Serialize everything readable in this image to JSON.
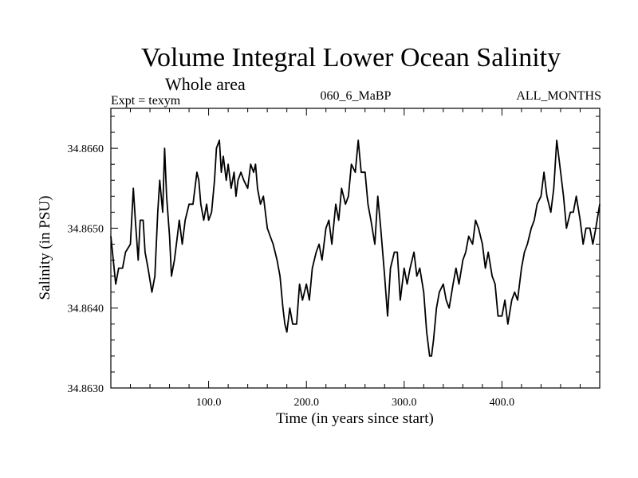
{
  "chart_data": {
    "type": "line",
    "title": "Volume Integral Lower Ocean Salinity",
    "subtitle": "Whole area",
    "header_left": "Expt = texym",
    "header_center": "060_6_MaBP",
    "header_right": "ALL_MONTHS",
    "xlabel": "Time (in years since start)",
    "ylabel": "Salinity (in PSU)",
    "xlim": [
      0,
      500
    ],
    "ylim": [
      34.863,
      34.8665
    ],
    "x_ticks": [
      100,
      200,
      300,
      400
    ],
    "x_tick_labels": [
      "100.0",
      "200.0",
      "300.0",
      "400.0"
    ],
    "y_ticks": [
      34.863,
      34.864,
      34.865,
      34.866
    ],
    "y_tick_labels": [
      "34.8630",
      "34.8640",
      "34.8650",
      "34.8660"
    ],
    "grid": false,
    "line_color": "#000000",
    "series": [
      {
        "x": [
          0,
          5,
          8,
          12,
          15,
          20,
          23,
          25,
          28,
          30,
          33,
          35,
          38,
          42,
          45,
          48,
          50,
          53,
          55,
          57,
          60,
          62,
          65,
          68,
          70,
          73,
          76,
          80,
          84,
          88,
          90,
          92,
          95,
          98,
          100,
          103,
          106,
          108,
          111,
          113,
          115,
          118,
          120,
          123,
          126,
          128,
          130,
          133,
          136,
          140,
          143,
          146,
          148,
          150,
          153,
          156,
          160,
          163,
          166,
          170,
          173,
          176,
          178,
          180,
          183,
          186,
          190,
          193,
          196,
          200,
          203,
          206,
          210,
          213,
          216,
          220,
          223,
          226,
          230,
          233,
          236,
          240,
          243,
          246,
          250,
          253,
          256,
          260,
          263,
          266,
          270,
          273,
          276,
          280,
          283,
          286,
          290,
          293,
          296,
          300,
          303,
          306,
          310,
          313,
          316,
          320,
          323,
          326,
          328,
          330,
          333,
          336,
          340,
          343,
          346,
          350,
          353,
          356,
          360,
          363,
          366,
          370,
          373,
          376,
          380,
          383,
          386,
          390,
          393,
          396,
          400,
          403,
          406,
          410,
          413,
          416,
          420,
          423,
          426,
          430,
          433,
          436,
          440,
          443,
          446,
          450,
          453,
          456,
          460,
          463,
          466,
          470,
          473,
          476,
          480,
          483,
          486,
          490,
          493,
          496,
          500
        ],
        "y": [
          34.8649,
          34.8643,
          34.8645,
          34.8645,
          34.8647,
          34.8648,
          34.8655,
          34.8651,
          34.8646,
          34.8651,
          34.8651,
          34.8647,
          34.8645,
          34.8642,
          34.8644,
          34.8652,
          34.8656,
          34.8652,
          34.866,
          34.8654,
          34.8649,
          34.8644,
          34.8646,
          34.8649,
          34.8651,
          34.8648,
          34.8651,
          34.8653,
          34.8653,
          34.8657,
          34.8656,
          34.8653,
          34.8651,
          34.8653,
          34.8651,
          34.8652,
          34.8656,
          34.866,
          34.8661,
          34.8657,
          34.8659,
          34.8656,
          34.8658,
          34.8655,
          34.8657,
          34.8654,
          34.8656,
          34.8657,
          34.8656,
          34.8655,
          34.8658,
          34.8657,
          34.8658,
          34.8655,
          34.8653,
          34.8654,
          34.865,
          34.8649,
          34.8648,
          34.8646,
          34.8644,
          34.864,
          34.8638,
          34.8637,
          34.864,
          34.8638,
          34.8638,
          34.8643,
          34.8641,
          34.8643,
          34.8641,
          34.8645,
          34.8647,
          34.8648,
          34.8646,
          34.865,
          34.8651,
          34.8648,
          34.8653,
          34.8651,
          34.8655,
          34.8653,
          34.8654,
          34.8658,
          34.8657,
          34.8661,
          34.8657,
          34.8657,
          34.8653,
          34.8651,
          34.8648,
          34.8654,
          34.865,
          34.8644,
          34.8639,
          34.8645,
          34.8647,
          34.8647,
          34.8641,
          34.8645,
          34.8643,
          34.8645,
          34.8647,
          34.8644,
          34.8645,
          34.8642,
          34.8637,
          34.8634,
          34.8634,
          34.8636,
          34.864,
          34.8642,
          34.8643,
          34.8641,
          34.864,
          34.8643,
          34.8645,
          34.8643,
          34.8646,
          34.8647,
          34.8649,
          34.8648,
          34.8651,
          34.865,
          34.8648,
          34.8645,
          34.8647,
          34.8644,
          34.8643,
          34.8639,
          34.8639,
          34.8641,
          34.8638,
          34.8641,
          34.8642,
          34.8641,
          34.8645,
          34.8647,
          34.8648,
          34.865,
          34.8651,
          34.8653,
          34.8654,
          34.8657,
          34.8654,
          34.8652,
          34.8655,
          34.8661,
          34.8657,
          34.8654,
          34.865,
          34.8652,
          34.8652,
          34.8654,
          34.8651,
          34.8648,
          34.865,
          34.865,
          34.8648,
          34.865,
          34.8653
        ]
      }
    ]
  }
}
